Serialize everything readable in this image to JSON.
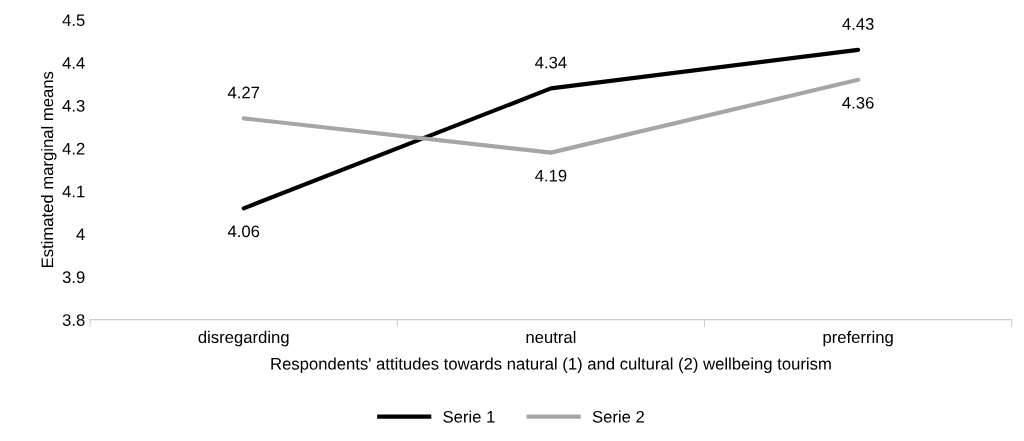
{
  "chart_data": {
    "type": "line",
    "xlabel": "Respondents' attitudes towards natural (1) and cultural (2) wellbeing tourism",
    "ylabel": "Estimated marginal means",
    "categories": [
      "disregarding",
      "neutral",
      "preferring"
    ],
    "series": [
      {
        "name": "Serie 1",
        "color": "#000000",
        "values": [
          4.06,
          4.34,
          4.43
        ]
      },
      {
        "name": "Serie 2",
        "color": "#a6a6a6",
        "values": [
          4.27,
          4.19,
          4.36
        ]
      }
    ],
    "ylim": [
      3.8,
      4.5
    ],
    "yticks": [
      3.8,
      3.9,
      4,
      4.1,
      4.2,
      4.3,
      4.4,
      4.5
    ],
    "data_labels": true,
    "legend": "bottom",
    "grid": false,
    "marker": "none",
    "line_style": "solid"
  }
}
